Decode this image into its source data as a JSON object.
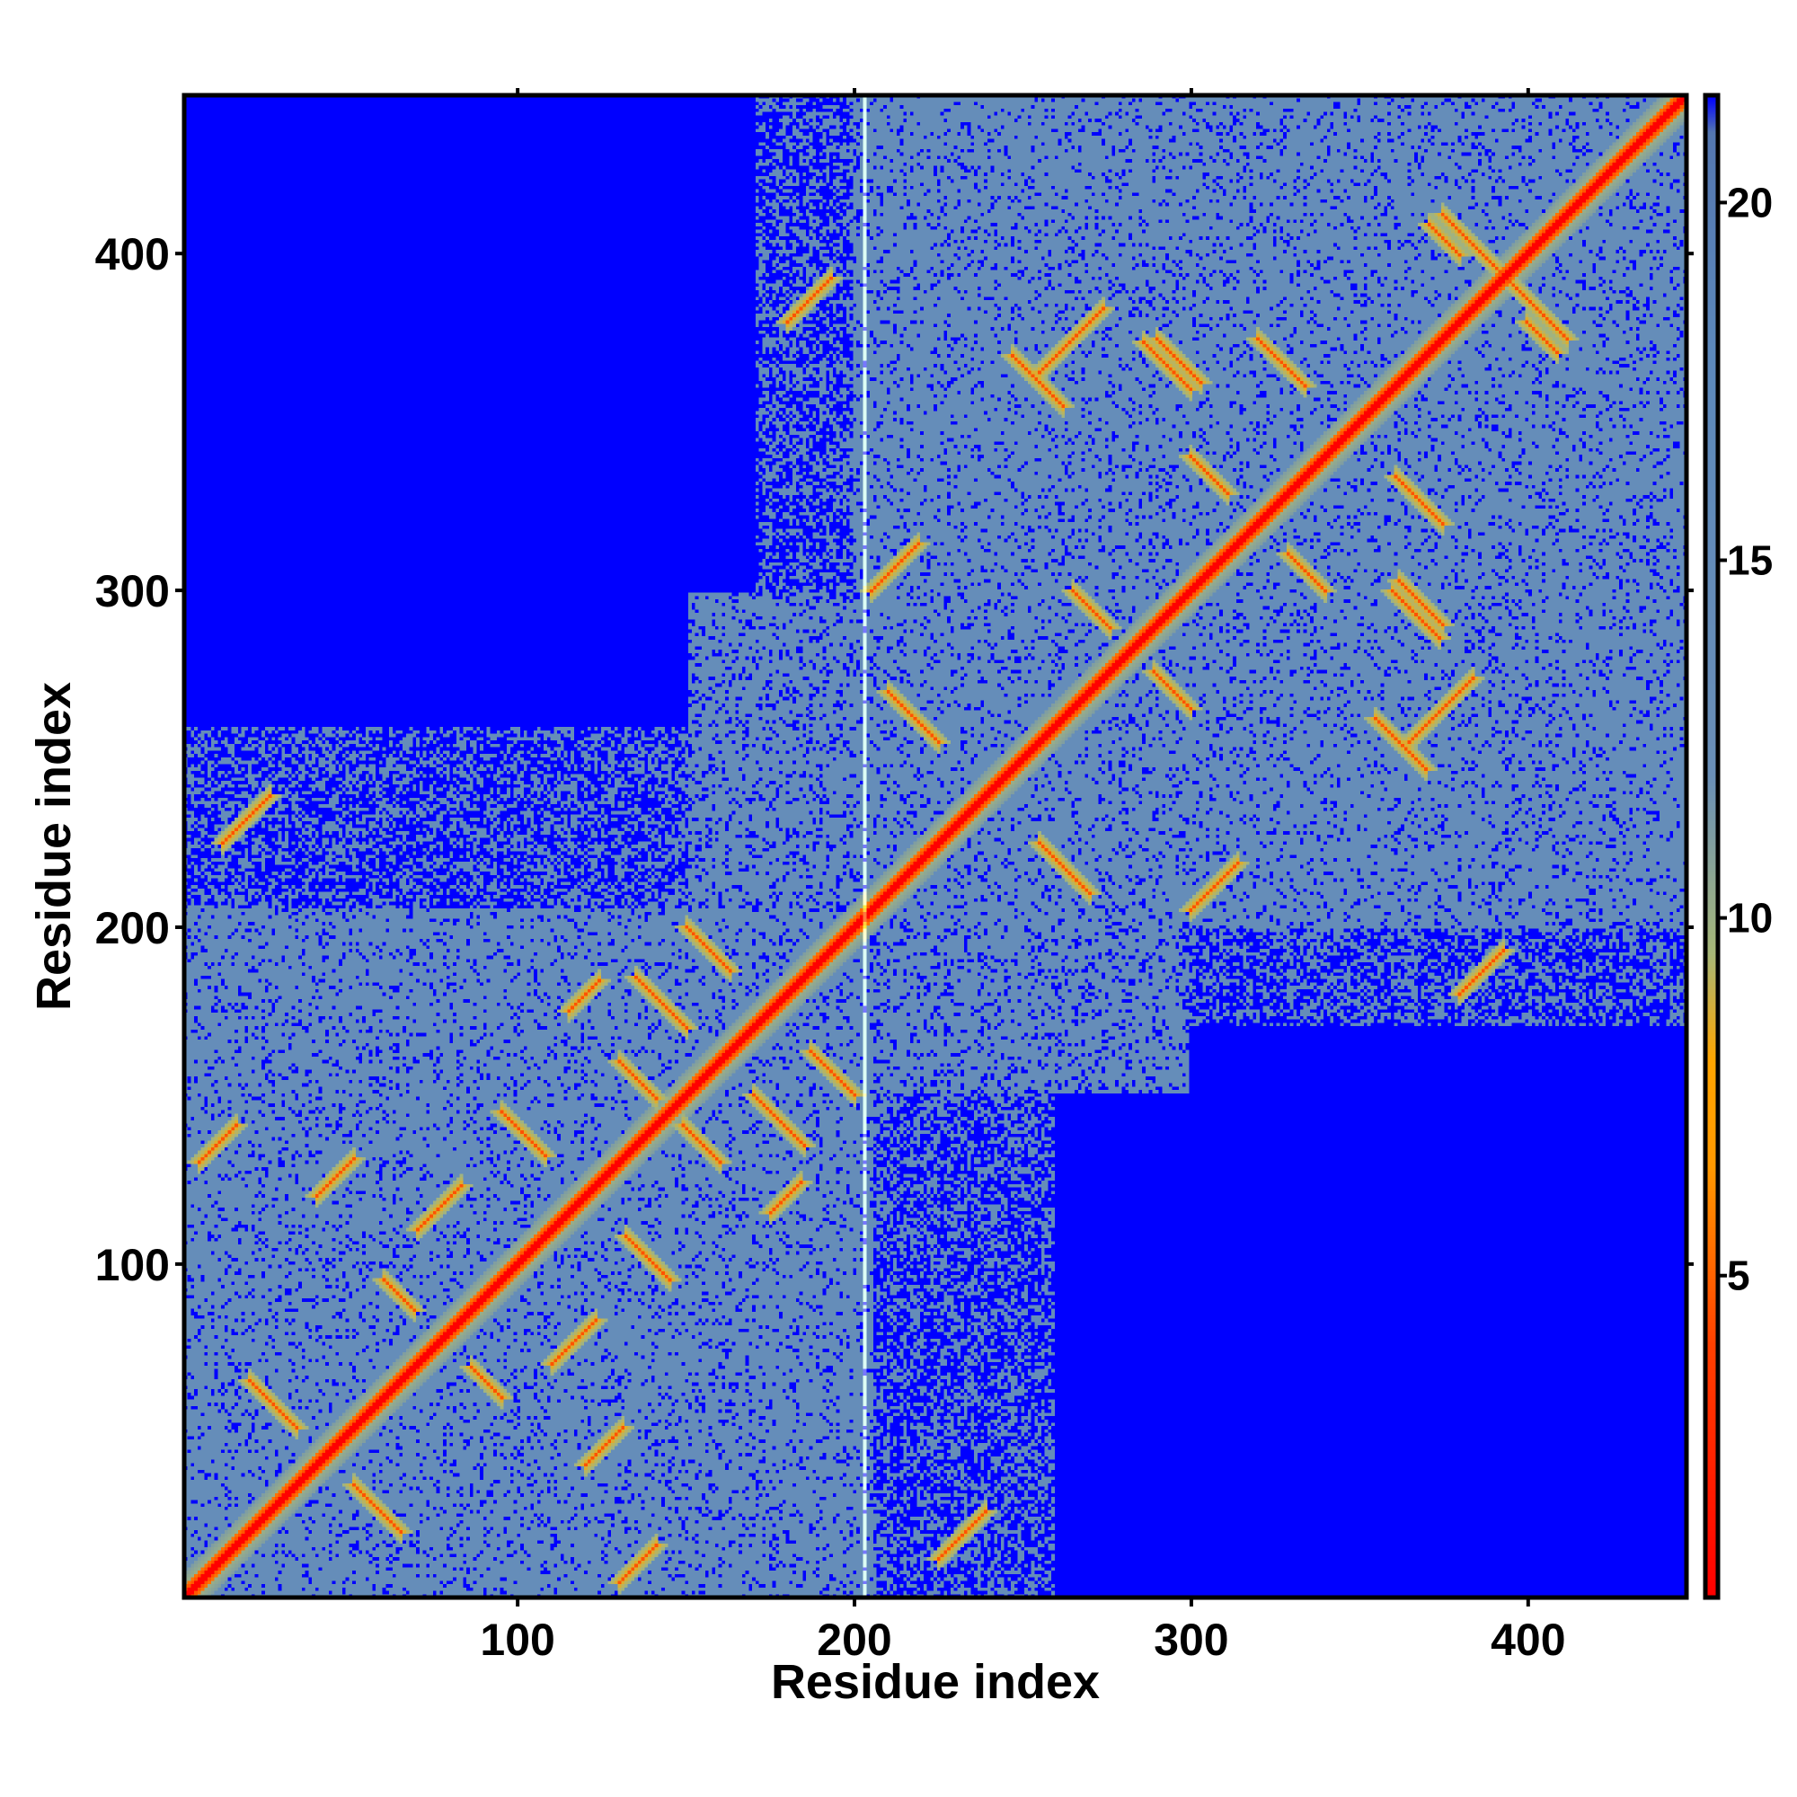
{
  "chart_data": {
    "type": "heatmap",
    "title": "",
    "xlabel": "Residue index",
    "ylabel": "Residue index",
    "xlim": [
      1,
      447
    ],
    "ylim": [
      1,
      447
    ],
    "x_ticks": [
      100,
      200,
      300,
      400
    ],
    "y_ticks": [
      100,
      200,
      300,
      400
    ],
    "x_tick_labels": [
      "100",
      "200",
      "300",
      "400"
    ],
    "y_tick_labels": [
      "100",
      "200",
      "300",
      "400"
    ],
    "colorbar": {
      "range": [
        0.5,
        21.5
      ],
      "ticks": [
        5,
        10,
        15,
        20
      ],
      "tick_labels": [
        "5",
        "10",
        "15",
        "20"
      ],
      "color_stops": [
        {
          "value": 0.5,
          "color": "#ff0000"
        },
        {
          "value": 4.0,
          "color": "#ff4000"
        },
        {
          "value": 6.5,
          "color": "#ff9900"
        },
        {
          "value": 8.0,
          "color": "#ffa500"
        },
        {
          "value": 9.5,
          "color": "#a8b878"
        },
        {
          "value": 12.0,
          "color": "#6a8fb8"
        },
        {
          "value": 18.0,
          "color": "#5c88bb"
        },
        {
          "value": 21.0,
          "color": "#5477b0"
        },
        {
          "value": 21.5,
          "color": "#0000ff"
        }
      ]
    },
    "matrix_description": {
      "n_residues": 447,
      "symmetric": true,
      "diagonal_value": 0.5,
      "far_value": 21.5,
      "gap_column": 203,
      "domains": [
        {
          "start": 1,
          "end": 205,
          "contact_level": 14
        },
        {
          "start": 200,
          "end": 447,
          "contact_level": 14
        }
      ],
      "contact_ridges": [
        {
          "i": 5,
          "j": 130,
          "length": 12,
          "orientation": "parallel"
        },
        {
          "i": 12,
          "j": 225,
          "length": 15,
          "orientation": "parallel"
        },
        {
          "i": 20,
          "j": 65,
          "length": 15,
          "orientation": "antiparallel"
        },
        {
          "i": 40,
          "j": 120,
          "length": 12,
          "orientation": "parallel"
        },
        {
          "i": 60,
          "j": 95,
          "length": 10,
          "orientation": "antiparallel"
        },
        {
          "i": 70,
          "j": 110,
          "length": 14,
          "orientation": "parallel"
        },
        {
          "i": 95,
          "j": 145,
          "length": 14,
          "orientation": "antiparallel"
        },
        {
          "i": 130,
          "j": 160,
          "length": 12,
          "orientation": "antiparallel"
        },
        {
          "i": 150,
          "j": 200,
          "length": 14,
          "orientation": "antiparallel"
        },
        {
          "i": 135,
          "j": 185,
          "length": 16,
          "orientation": "antiparallel"
        },
        {
          "i": 175,
          "j": 115,
          "length": 10,
          "orientation": "parallel"
        },
        {
          "i": 205,
          "j": 300,
          "length": 15,
          "orientation": "parallel"
        },
        {
          "i": 210,
          "j": 270,
          "length": 16,
          "orientation": "antiparallel"
        },
        {
          "i": 255,
          "j": 365,
          "length": 20,
          "orientation": "parallel"
        },
        {
          "i": 265,
          "j": 300,
          "length": 12,
          "orientation": "antiparallel"
        },
        {
          "i": 290,
          "j": 375,
          "length": 14,
          "orientation": "antiparallel"
        },
        {
          "i": 300,
          "j": 340,
          "length": 12,
          "orientation": "antiparallel"
        },
        {
          "i": 320,
          "j": 375,
          "length": 15,
          "orientation": "antiparallel"
        },
        {
          "i": 355,
          "j": 262,
          "length": 16,
          "orientation": "antiparallel"
        },
        {
          "i": 360,
          "j": 300,
          "length": 15,
          "orientation": "antiparallel"
        },
        {
          "i": 375,
          "j": 412,
          "length": 20,
          "orientation": "antiparallel"
        },
        {
          "i": 380,
          "j": 180,
          "length": 14,
          "orientation": "parallel"
        },
        {
          "i": 400,
          "j": 380,
          "length": 10,
          "orientation": "antiparallel"
        }
      ]
    }
  }
}
